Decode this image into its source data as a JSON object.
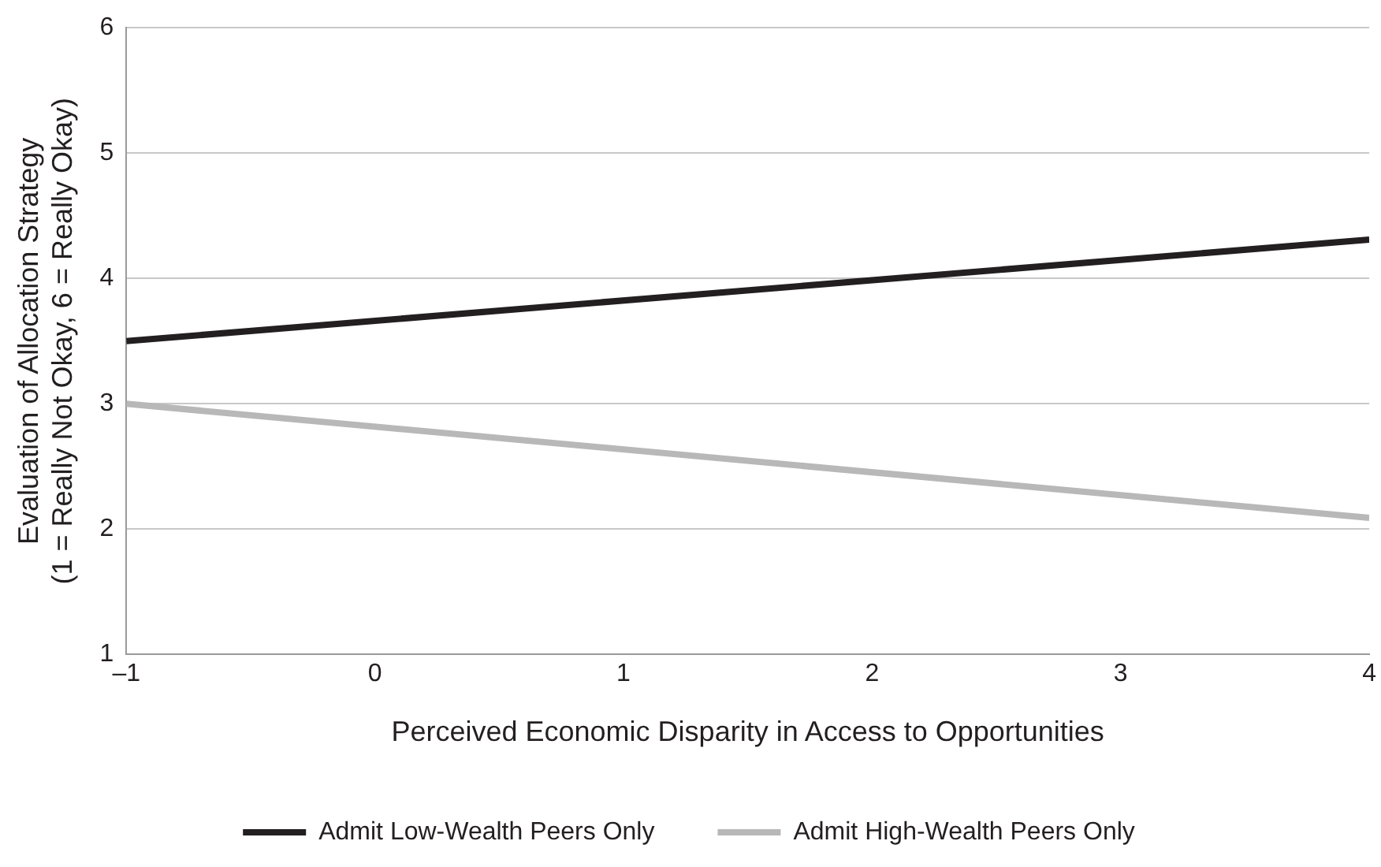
{
  "chart_data": {
    "type": "line",
    "xlabel": "Perceived Economic Disparity in Access to Opportunities",
    "ylabel": "Evaluation of Allocation Strategy\n(1 = Really Not Okay, 6 = Really Okay)",
    "x": [
      -1,
      4
    ],
    "series": [
      {
        "name": "Admit Low-Wealth Peers Only",
        "color": "#231f20",
        "values": [
          3.5,
          4.31
        ]
      },
      {
        "name": "Admit High-Wealth Peers Only",
        "color": "#b8b8b8",
        "values": [
          3.0,
          2.09
        ]
      }
    ],
    "xlim": [
      -1,
      4
    ],
    "xticks": [
      {
        "value": -1,
        "label": "–1"
      },
      0,
      1,
      2,
      3,
      4
    ],
    "ylim": [
      1,
      6
    ],
    "yticks": [
      1,
      2,
      3,
      4,
      5,
      6
    ],
    "grid": "y",
    "legend": "bottom",
    "marker": "none",
    "line_style": "solid"
  }
}
